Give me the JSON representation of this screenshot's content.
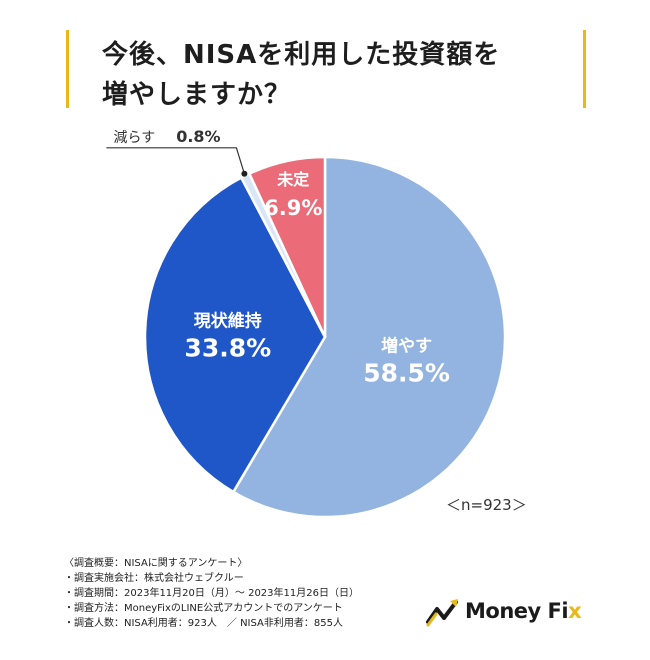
{
  "title": {
    "line1": "今後、NISAを利用した投資額を",
    "line2": "増やしますか？"
  },
  "chart_data": {
    "type": "pie",
    "categories": [
      "増やす",
      "現状維持",
      "減らす",
      "未定"
    ],
    "values": [
      58.5,
      33.8,
      0.8,
      6.9
    ],
    "value_labels": [
      "58.5%",
      "33.8%",
      "0.8%",
      "6.9%"
    ],
    "colors": [
      "#93b3e0",
      "#1f56c8",
      "#d9e6f6",
      "#ec6b78"
    ],
    "sample_size": "＜n=923＞"
  },
  "notes": [
    "〈調査概要：NISAに関するアンケート〉",
    "・調査実施会社：株式会社ウェブクルー",
    "・調査期間：2023年11月20日（月）〜 2023年11月26日（日）",
    "・調査方法：MoneyFixのLINE公式アカウントでのアンケート",
    "・調査人数：NISA利用者：923人　／ NISA非利用者：855人"
  ],
  "logo": {
    "text_main": "Money Fi",
    "text_accent": "x",
    "icon": "money-fix-logo-icon",
    "accent_color": "#e8b917"
  }
}
